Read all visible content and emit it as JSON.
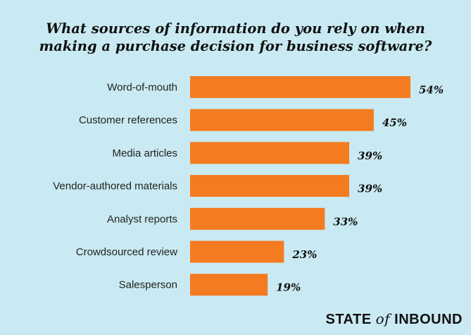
{
  "chart_data": {
    "type": "bar",
    "orientation": "horizontal",
    "title_line1": "What sources of information do you rely on when",
    "title_line2": "making a purchase decision for business software?",
    "categories": [
      "Word-of-mouth",
      "Customer references",
      "Media articles",
      "Vendor-authored materials",
      "Analyst reports",
      "Crowdsourced review",
      "Salesperson"
    ],
    "values": [
      54,
      45,
      39,
      39,
      33,
      23,
      19
    ],
    "value_labels": [
      "54%",
      "45%",
      "39%",
      "39%",
      "33%",
      "23%",
      "19%"
    ],
    "unit": "%",
    "bar_color": "#f47b20",
    "background_color": "#c9eaf2"
  },
  "branding": {
    "word1": "STATE",
    "word2": "of",
    "word3": "INBOUND"
  }
}
